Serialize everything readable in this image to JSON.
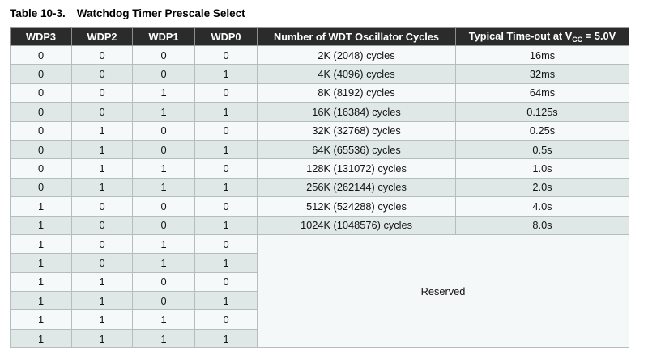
{
  "title": {
    "label": "Table 10-3.",
    "caption": "Watchdog Timer Prescale Select"
  },
  "table": {
    "bit_headers": [
      "WDP3",
      "WDP2",
      "WDP1",
      "WDP0"
    ],
    "cycles_header": "Number of WDT Oscillator Cycles",
    "timeout_header": {
      "pre": "Typical Time-out at V",
      "sub": "CC",
      "post": "= 5.0V"
    },
    "rows": [
      {
        "bits": [
          "0",
          "0",
          "0",
          "0"
        ],
        "cycles": "2K (2048) cycles",
        "timeout": "16ms"
      },
      {
        "bits": [
          "0",
          "0",
          "0",
          "1"
        ],
        "cycles": "4K (4096) cycles",
        "timeout": "32ms"
      },
      {
        "bits": [
          "0",
          "0",
          "1",
          "0"
        ],
        "cycles": "8K (8192) cycles",
        "timeout": "64ms"
      },
      {
        "bits": [
          "0",
          "0",
          "1",
          "1"
        ],
        "cycles": "16K (16384) cycles",
        "timeout": "0.125s"
      },
      {
        "bits": [
          "0",
          "1",
          "0",
          "0"
        ],
        "cycles": "32K (32768) cycles",
        "timeout": "0.25s"
      },
      {
        "bits": [
          "0",
          "1",
          "0",
          "1"
        ],
        "cycles": "64K (65536) cycles",
        "timeout": "0.5s"
      },
      {
        "bits": [
          "0",
          "1",
          "1",
          "0"
        ],
        "cycles": "128K (131072) cycles",
        "timeout": "1.0s"
      },
      {
        "bits": [
          "0",
          "1",
          "1",
          "1"
        ],
        "cycles": "256K (262144) cycles",
        "timeout": "2.0s"
      },
      {
        "bits": [
          "1",
          "0",
          "0",
          "0"
        ],
        "cycles": "512K (524288) cycles",
        "timeout": "4.0s"
      },
      {
        "bits": [
          "1",
          "0",
          "0",
          "1"
        ],
        "cycles": "1024K (1048576) cycles",
        "timeout": "8.0s"
      }
    ],
    "reserved": {
      "label": "Reserved",
      "rows": [
        [
          "1",
          "0",
          "1",
          "0"
        ],
        [
          "1",
          "0",
          "1",
          "1"
        ],
        [
          "1",
          "1",
          "0",
          "0"
        ],
        [
          "1",
          "1",
          "0",
          "1"
        ],
        [
          "1",
          "1",
          "1",
          "0"
        ],
        [
          "1",
          "1",
          "1",
          "1"
        ]
      ]
    }
  },
  "colors": {
    "header_bg": "#2b2b2b",
    "header_text": "#ffffff",
    "row_light": "#f6f9f9",
    "row_alt": "#dfe8e6",
    "reserved_bg": "#f4f8f8",
    "cell_border": "#b5bdbd",
    "outer_border": "#979c9c",
    "title_text": "#000000"
  }
}
